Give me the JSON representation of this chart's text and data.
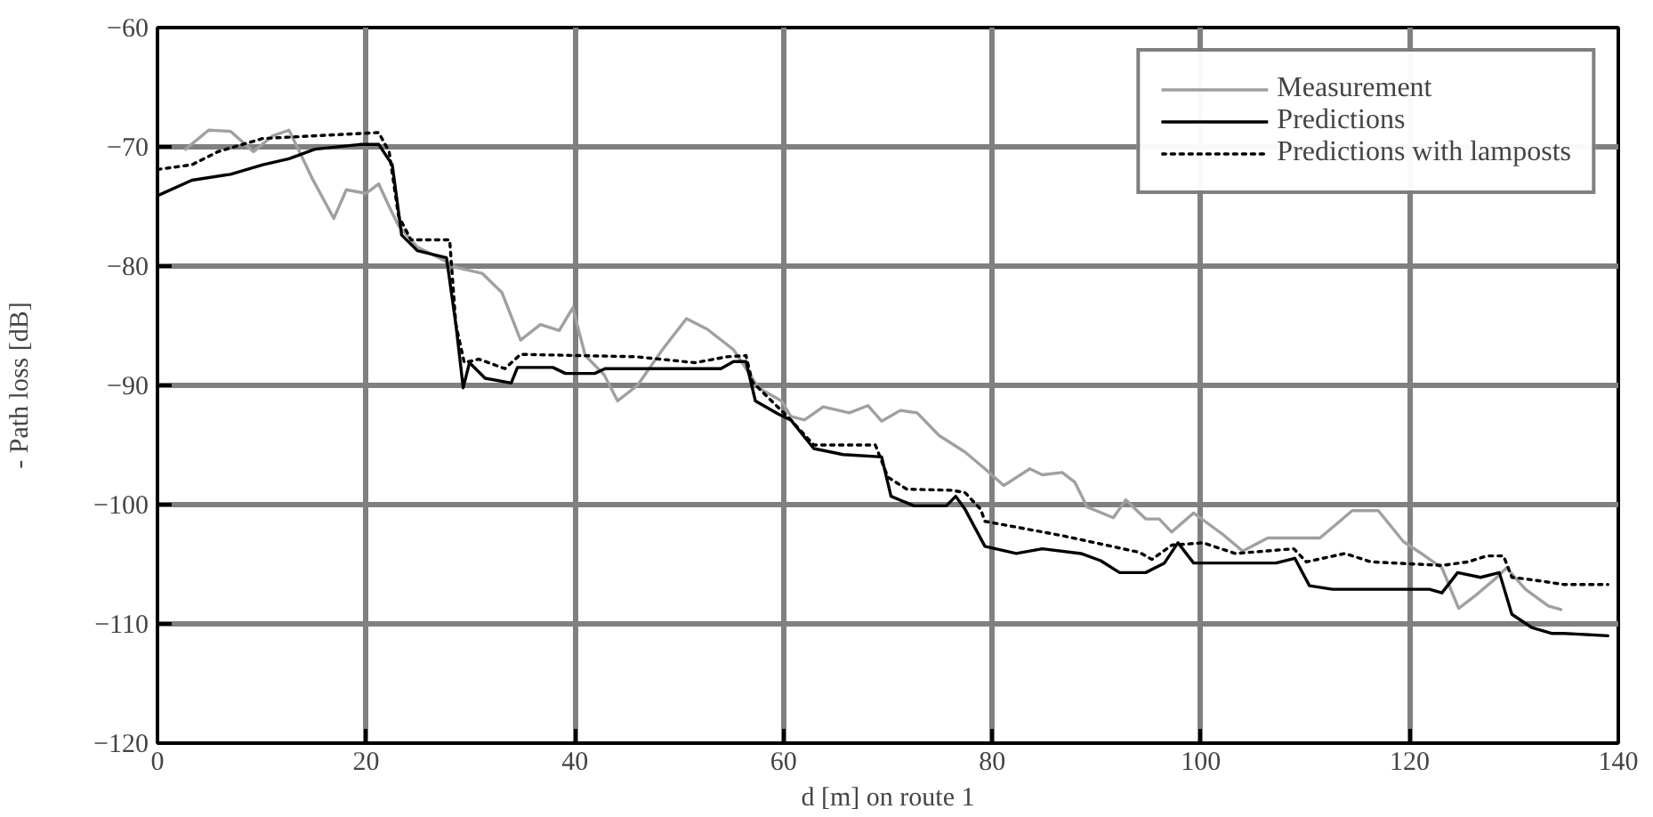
{
  "chart_data": {
    "type": "line",
    "xlabel": "d [m] on route 1",
    "ylabel": "- Path loss [dB]",
    "xlim": [
      0,
      140
    ],
    "ylim": [
      -120,
      -60
    ],
    "xticks": [
      0,
      20,
      40,
      60,
      80,
      100,
      120,
      140
    ],
    "yticks": [
      -120,
      -110,
      -100,
      -90,
      -80,
      -70,
      -60
    ],
    "grid": true,
    "legend": "top right",
    "marker": "none",
    "series": [
      {
        "name": "Measurement",
        "color": "#a0a0a0",
        "line_style": "solid",
        "x": [
          2.7,
          4.9,
          7,
          9.2,
          11,
          12.6,
          13.5,
          14.8,
          16.9,
          18.1,
          20,
          21.2,
          22.2,
          23.1,
          24.9,
          27.4,
          28.6,
          31.1,
          33,
          34.8,
          36.7,
          38.5,
          39.8,
          41,
          42.8,
          44.1,
          46,
          48.4,
          50.7,
          52.7,
          55.2,
          57.6,
          59.8,
          60.7,
          62,
          63.8,
          66.3,
          68.1,
          69.4,
          71.2,
          72.8,
          74.9,
          77.4,
          79.3,
          81.1,
          83.6,
          84.8,
          86.7,
          87.9,
          89.1,
          91.6,
          92.8,
          94.7,
          96,
          97.2,
          99.3,
          102.1,
          104,
          106.4,
          111.4,
          112.9,
          114.5,
          117,
          119.4,
          121.3,
          123.1,
          124.7,
          126.2,
          128.1,
          129.3,
          131.1,
          133.3,
          134.5
        ],
        "values": [
          -70.2,
          -68.6,
          -68.7,
          -70.4,
          -69.1,
          -68.6,
          -70.2,
          -72.6,
          -76,
          -73.6,
          -73.9,
          -73.1,
          -75,
          -76.6,
          -78.4,
          -79.5,
          -80.1,
          -80.6,
          -82.2,
          -86.2,
          -84.9,
          -85.4,
          -83.5,
          -87.5,
          -89.1,
          -91.3,
          -90,
          -87,
          -84.4,
          -85.3,
          -87,
          -90.2,
          -91.3,
          -92.6,
          -92.9,
          -91.8,
          -92.3,
          -91.7,
          -93,
          -92.1,
          -92.3,
          -94.2,
          -95.6,
          -97,
          -98.4,
          -97,
          -97.5,
          -97.3,
          -98.1,
          -100.2,
          -101.1,
          -99.6,
          -101.2,
          -101.2,
          -102.3,
          -100.7,
          -102.5,
          -103.9,
          -102.8,
          -102.8,
          -101.7,
          -100.5,
          -100.5,
          -103.1,
          -104.2,
          -105.3,
          -108.7,
          -107.7,
          -106.3,
          -105.3,
          -107.1,
          -108.5,
          -108.8
        ]
      },
      {
        "name": "Predictions",
        "color": "#000000",
        "line_style": "solid",
        "x": [
          0,
          3.3,
          7,
          10.1,
          12.6,
          15.1,
          19.4,
          21.2,
          22.5,
          23.4,
          24.9,
          27.7,
          28.6,
          29.3,
          29.9,
          31.4,
          33.9,
          34.5,
          37.9,
          39.1,
          41.9,
          42.9,
          54,
          55.2,
          56.4,
          57.3,
          59.5,
          60.7,
          62.9,
          65.7,
          69.4,
          70.3,
          72.5,
          75.6,
          76.5,
          77.4,
          79.3,
          82.3,
          84.8,
          88.5,
          90.4,
          92.2,
          94.7,
          96.5,
          97.8,
          99.3,
          107.2,
          109,
          110.4,
          112.6,
          121.9,
          123.1,
          124.6,
          126.8,
          128.6,
          129.8,
          131.7,
          133.6,
          134.8,
          139
        ],
        "values": [
          -74.1,
          -72.8,
          -72.3,
          -71.5,
          -71,
          -70.2,
          -69.8,
          -69.8,
          -71.5,
          -77.4,
          -78.7,
          -79.3,
          -84.9,
          -90.2,
          -88.1,
          -89.4,
          -89.8,
          -88.5,
          -88.5,
          -89,
          -89,
          -88.6,
          -88.6,
          -88,
          -88,
          -91.3,
          -92.4,
          -92.9,
          -95.3,
          -95.8,
          -96,
          -99.3,
          -100.1,
          -100.1,
          -99.3,
          -100.4,
          -103.5,
          -104.1,
          -103.7,
          -104.1,
          -104.7,
          -105.7,
          -105.7,
          -104.9,
          -103.2,
          -104.9,
          -104.9,
          -104.5,
          -106.8,
          -107.1,
          -107.1,
          -107.4,
          -105.7,
          -106.1,
          -105.7,
          -109.2,
          -110.3,
          -110.8,
          -110.8,
          -111
        ]
      },
      {
        "name": "Predictions with lamposts",
        "color": "#000000",
        "line_style": "dotted",
        "x": [
          0,
          3.3,
          5.8,
          10.1,
          21.2,
          22.2,
          23.1,
          24.3,
          28,
          28.6,
          29.4,
          30.8,
          33.3,
          34.8,
          45.9,
          51.5,
          54.6,
          56.4,
          57,
          60.7,
          62.9,
          64.4,
          68.8,
          70,
          71.8,
          76.2,
          77.4,
          78.9,
          79.3,
          86.7,
          90.4,
          94.1,
          95.3,
          97.2,
          100.2,
          103.3,
          108.9,
          110.1,
          113.8,
          116.3,
          123.1,
          125.6,
          127.4,
          129,
          129.8,
          131.7,
          134.8,
          139
        ],
        "values": [
          -71.9,
          -71.5,
          -70.4,
          -69.3,
          -68.8,
          -70.4,
          -75.8,
          -77.8,
          -77.8,
          -84.9,
          -88.1,
          -87.8,
          -88.6,
          -87.4,
          -87.6,
          -88.1,
          -87.6,
          -87.5,
          -89.7,
          -92.9,
          -95,
          -95,
          -95,
          -97.7,
          -98.7,
          -98.8,
          -99,
          -100.4,
          -101.4,
          -102.6,
          -103.3,
          -104,
          -104.6,
          -103.4,
          -103.2,
          -104.1,
          -103.7,
          -104.8,
          -104.1,
          -104.8,
          -105.1,
          -104.8,
          -104.3,
          -104.3,
          -106.1,
          -106.3,
          -106.7,
          -106.7
        ]
      }
    ]
  }
}
